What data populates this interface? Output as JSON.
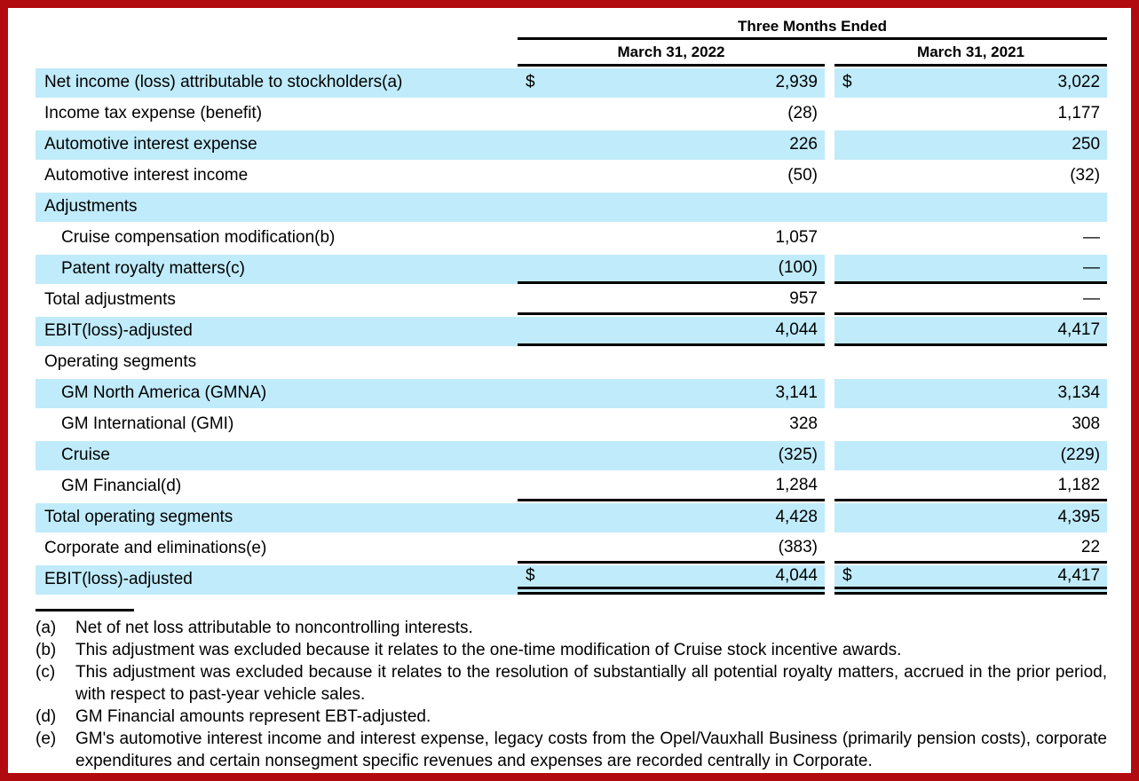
{
  "colors": {
    "highlight": "#c0ebfa",
    "page_border": "#b20b0f",
    "rule": "#000000"
  },
  "table": {
    "header": {
      "period": "Three Months Ended",
      "col_2022": "March 31, 2022",
      "col_2021": "March 31, 2021"
    },
    "rows": [
      {
        "label": "Net income (loss) attributable to stockholders(a)",
        "dollar": true,
        "v2022": "2,939",
        "v2021": "3,022",
        "hl": true
      },
      {
        "label": "Income tax expense (benefit)",
        "v2022": "(28)",
        "v2021": "1,177"
      },
      {
        "label": "Automotive interest expense",
        "v2022": "226",
        "v2021": "250",
        "hl": true
      },
      {
        "label": "Automotive interest income",
        "v2022": "(50)",
        "v2021": "(32)"
      },
      {
        "label": "Adjustments",
        "section": true,
        "hl": true
      },
      {
        "label": "Cruise compensation modification(b)",
        "indent": true,
        "v2022": "1,057",
        "v2021": "—"
      },
      {
        "label": "Patent royalty matters(c)",
        "indent": true,
        "v2022": "(100)",
        "v2021": "—",
        "hl": true,
        "rule": "single"
      },
      {
        "label": "Total adjustments",
        "v2022": "957",
        "v2021": "—",
        "rule": "single"
      },
      {
        "label": "EBIT(loss)-adjusted",
        "v2022": "4,044",
        "v2021": "4,417",
        "hl": true,
        "rule": "single"
      },
      {
        "label": "Operating segments",
        "section": true
      },
      {
        "label": "GM North America (GMNA)",
        "indent": true,
        "v2022": "3,141",
        "v2021": "3,134",
        "hl": true
      },
      {
        "label": "GM International (GMI)",
        "indent": true,
        "v2022": "328",
        "v2021": "308"
      },
      {
        "label": "Cruise",
        "indent": true,
        "v2022": "(325)",
        "v2021": "(229)",
        "hl": true
      },
      {
        "label": "GM Financial(d)",
        "indent": true,
        "v2022": "1,284",
        "v2021": "1,182",
        "rule": "single"
      },
      {
        "label": "Total operating segments",
        "v2022": "4,428",
        "v2021": "4,395",
        "hl": true
      },
      {
        "label": "Corporate and eliminations(e)",
        "v2022": "(383)",
        "v2021": "22",
        "rule": "single"
      },
      {
        "label": "EBIT(loss)-adjusted",
        "dollar": true,
        "v2022": "4,044",
        "v2021": "4,417",
        "hl": true,
        "rule": "double"
      }
    ],
    "footnotes": [
      {
        "marker": "(a)",
        "text": "Net of net loss attributable to noncontrolling interests."
      },
      {
        "marker": "(b)",
        "text": "This adjustment was excluded because it relates to the one-time modification of Cruise stock incentive awards."
      },
      {
        "marker": "(c)",
        "text": "This adjustment was excluded because it relates to the resolution of substantially all potential royalty matters, accrued in the prior period, with respect to past-year vehicle sales."
      },
      {
        "marker": "(d)",
        "text": "GM Financial amounts represent EBT-adjusted."
      },
      {
        "marker": "(e)",
        "text": "GM's automotive interest income and interest expense, legacy costs from the Opel/Vauxhall Business (primarily pension costs), corporate expenditures and certain nonsegment specific revenues and expenses are recorded centrally in Corporate."
      }
    ]
  }
}
